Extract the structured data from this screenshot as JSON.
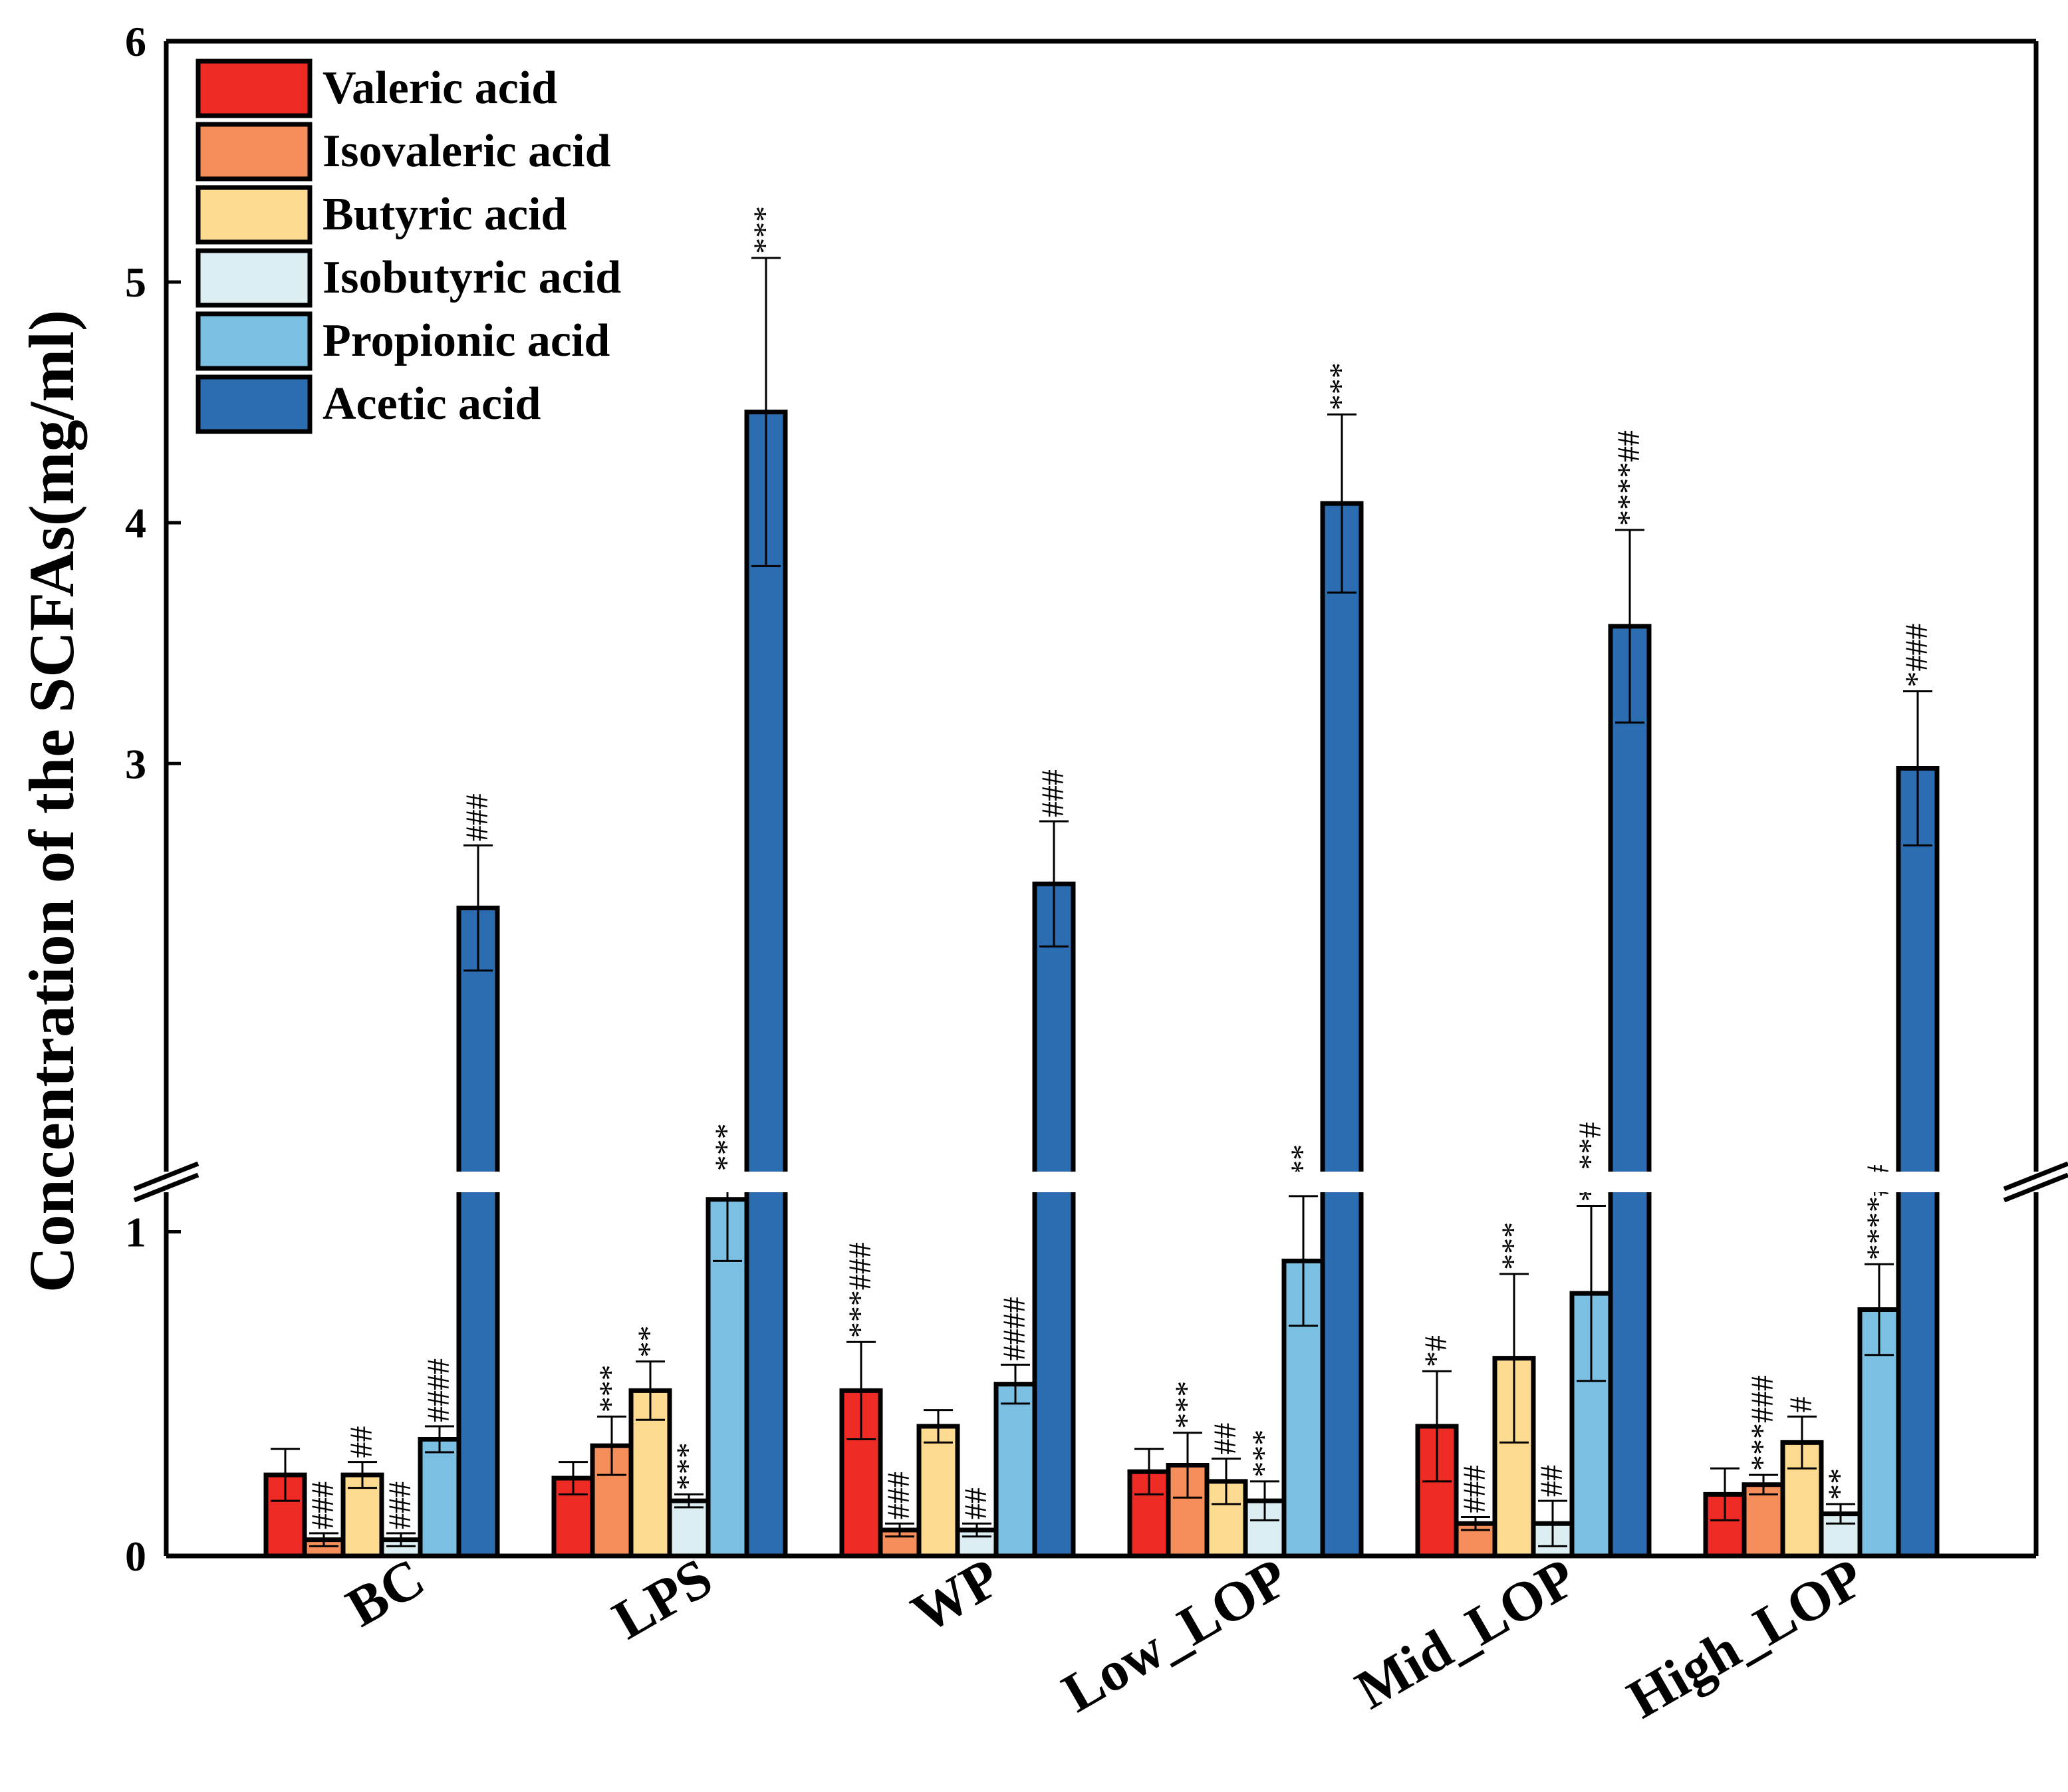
{
  "chart_data": {
    "type": "bar",
    "title": "",
    "xlabel": "",
    "ylabel": "Concentration of the SCFAs(mg/ml)",
    "ylim": [
      0,
      6
    ],
    "y_axis_break": [
      1.2,
      1.2
    ],
    "y_lower_range": [
      0,
      1.2
    ],
    "y_upper_range": [
      1.2,
      6
    ],
    "yticks": [
      "0",
      "1",
      "3",
      "4",
      "5",
      "6"
    ],
    "ytick_values": [
      0,
      1,
      3,
      4,
      5,
      6
    ],
    "grid": false,
    "legend_position": "top-left",
    "categories": [
      "BC",
      "LPS",
      "WP",
      "Low_LOP",
      "Mid_LOP",
      "High_LOP"
    ],
    "series": [
      {
        "name": "Valeric acid",
        "color": "#ED2A24",
        "values": [
          0.25,
          0.24,
          0.51,
          0.26,
          0.4,
          0.19
        ],
        "errors": [
          0.08,
          0.05,
          0.15,
          0.07,
          0.17,
          0.08
        ],
        "annotations": [
          "",
          "",
          "***###",
          "",
          "*#",
          ""
        ]
      },
      {
        "name": "Isovaleric acid",
        "color": "#F58E5A",
        "values": [
          0.05,
          0.34,
          0.08,
          0.28,
          0.1,
          0.22
        ],
        "errors": [
          0.02,
          0.09,
          0.02,
          0.1,
          0.02,
          0.03
        ],
        "annotations": [
          "###",
          "***",
          "###",
          "***",
          "###",
          "***###"
        ]
      },
      {
        "name": "Butyric acid",
        "color": "#FCDA8F",
        "values": [
          0.25,
          0.51,
          0.4,
          0.23,
          0.61,
          0.35
        ],
        "errors": [
          0.04,
          0.09,
          0.05,
          0.07,
          0.26,
          0.08
        ],
        "annotations": [
          "##",
          "**",
          "",
          "##",
          "***",
          "#"
        ]
      },
      {
        "name": "Isobutyric acid",
        "color": "#DDEEF2",
        "values": [
          0.05,
          0.17,
          0.08,
          0.17,
          0.1,
          0.13
        ],
        "errors": [
          0.02,
          0.02,
          0.02,
          0.06,
          0.07,
          0.03
        ],
        "annotations": [
          "###",
          "***",
          "##",
          "***",
          "##",
          "**"
        ]
      },
      {
        "name": "Propionic acid",
        "color": "#7BBFE2",
        "values": [
          0.36,
          1.1,
          0.53,
          0.91,
          0.81,
          0.76
        ],
        "errors": [
          0.04,
          0.19,
          0.06,
          0.2,
          0.27,
          0.14
        ],
        "annotations": [
          "####",
          "***",
          "####",
          "***",
          "****#",
          "****##"
        ]
      },
      {
        "name": "Acetic acid",
        "color": "#2B6DB0",
        "values": [
          2.4,
          4.46,
          2.5,
          4.08,
          3.57,
          2.98
        ],
        "errors": [
          0.26,
          0.64,
          0.26,
          0.37,
          0.4,
          0.32
        ],
        "annotations": [
          "###",
          "***",
          "###",
          "***",
          "****##",
          "*###"
        ]
      }
    ]
  }
}
